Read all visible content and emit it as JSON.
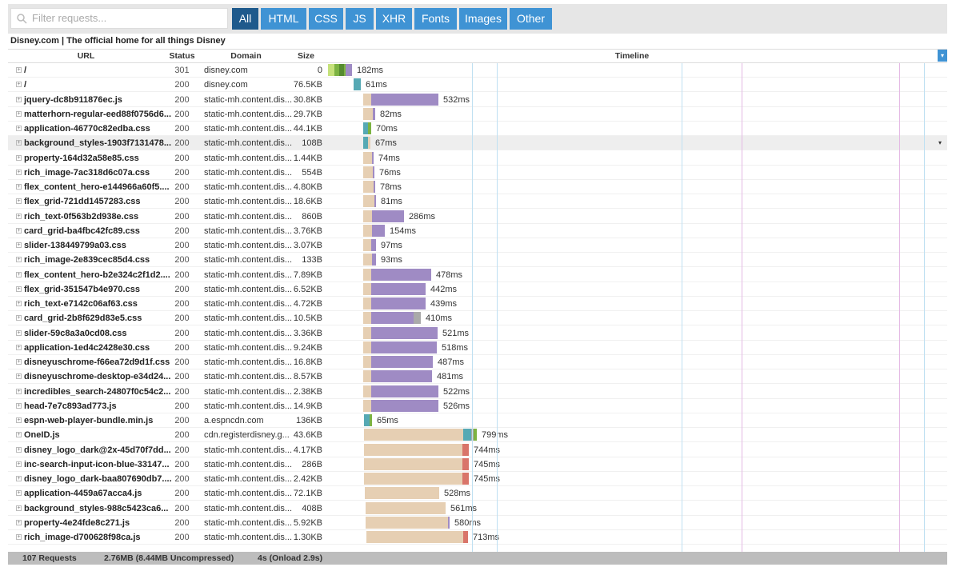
{
  "toolbar": {
    "search_placeholder": "Filter requests...",
    "filters": [
      "All",
      "HTML",
      "CSS",
      "JS",
      "XHR",
      "Fonts",
      "Images",
      "Other"
    ]
  },
  "page_title": "Disney.com | The official home for all things Disney",
  "table": {
    "columns": [
      "URL",
      "Status",
      "Domain",
      "Size",
      "Timeline"
    ],
    "rows": [
      [
        "/",
        "301",
        "disney.com",
        "0",
        "182ms"
      ],
      [
        "/",
        "200",
        "disney.com",
        "76.5KB",
        "61ms"
      ],
      [
        "jquery-dc8b911876ec.js",
        "200",
        "static-mh.content.dis...",
        "30.8KB",
        "532ms"
      ],
      [
        "matterhorn-regular-eed88f0756d6...",
        "200",
        "static-mh.content.dis...",
        "29.7KB",
        "82ms"
      ],
      [
        "application-46770c82edba.css",
        "200",
        "static-mh.content.dis...",
        "44.1KB",
        "70ms"
      ],
      [
        "background_styles-1903f7131478...",
        "200",
        "static-mh.content.dis...",
        "108B",
        "67ms"
      ],
      [
        "property-164d32a58e85.css",
        "200",
        "static-mh.content.dis...",
        "1.44KB",
        "74ms"
      ],
      [
        "rich_image-7ac318d6c07a.css",
        "200",
        "static-mh.content.dis...",
        "554B",
        "76ms"
      ],
      [
        "flex_content_hero-e144966a60f5....",
        "200",
        "static-mh.content.dis...",
        "4.80KB",
        "78ms"
      ],
      [
        "flex_grid-721dd1457283.css",
        "200",
        "static-mh.content.dis...",
        "18.6KB",
        "81ms"
      ],
      [
        "rich_text-0f563b2d938e.css",
        "200",
        "static-mh.content.dis...",
        "860B",
        "286ms"
      ],
      [
        "card_grid-ba4fbc42fc89.css",
        "200",
        "static-mh.content.dis...",
        "3.76KB",
        "154ms"
      ],
      [
        "slider-138449799a03.css",
        "200",
        "static-mh.content.dis...",
        "3.07KB",
        "97ms"
      ],
      [
        "rich_image-2e839cec85d4.css",
        "200",
        "static-mh.content.dis...",
        "133B",
        "93ms"
      ],
      [
        "flex_content_hero-b2e324c2f1d2....",
        "200",
        "static-mh.content.dis...",
        "7.89KB",
        "478ms"
      ],
      [
        "flex_grid-351547b4e970.css",
        "200",
        "static-mh.content.dis...",
        "6.52KB",
        "442ms"
      ],
      [
        "rich_text-e7142c06af63.css",
        "200",
        "static-mh.content.dis...",
        "4.72KB",
        "439ms"
      ],
      [
        "card_grid-2b8f629d83e5.css",
        "200",
        "static-mh.content.dis...",
        "10.5KB",
        "410ms"
      ],
      [
        "slider-59c8a3a0cd08.css",
        "200",
        "static-mh.content.dis...",
        "3.36KB",
        "521ms"
      ],
      [
        "application-1ed4c2428e30.css",
        "200",
        "static-mh.content.dis...",
        "9.24KB",
        "518ms"
      ],
      [
        "disneyuschrome-f66ea72d9d1f.css",
        "200",
        "static-mh.content.dis...",
        "16.8KB",
        "487ms"
      ],
      [
        "disneyuschrome-desktop-e34d24...",
        "200",
        "static-mh.content.dis...",
        "8.57KB",
        "481ms"
      ],
      [
        "incredibles_search-24807f0c54c2...",
        "200",
        "static-mh.content.dis...",
        "2.38KB",
        "522ms"
      ],
      [
        "head-7e7c893ad773.js",
        "200",
        "static-mh.content.dis...",
        "14.9KB",
        "526ms"
      ],
      [
        "espn-web-player-bundle.min.js",
        "200",
        "a.espncdn.com",
        "136KB",
        "65ms"
      ],
      [
        "OneID.js",
        "200",
        "cdn.registerdisney.g...",
        "43.6KB",
        "799ms"
      ],
      [
        "disney_logo_dark@2x-45d70f7dd...",
        "200",
        "static-mh.content.dis...",
        "4.17KB",
        "744ms"
      ],
      [
        "inc-search-input-icon-blue-33147...",
        "200",
        "static-mh.content.dis...",
        "286B",
        "745ms"
      ],
      [
        "disney_logo_dark-baa807690db7....",
        "200",
        "static-mh.content.dis...",
        "2.42KB",
        "745ms"
      ],
      [
        "application-4459a67acca4.js",
        "200",
        "static-mh.content.dis...",
        "72.1KB",
        "528ms"
      ],
      [
        "background_styles-988c5423ca6...",
        "200",
        "static-mh.content.dis...",
        "408B",
        "561ms"
      ],
      [
        "property-4e24fde8c271.js",
        "200",
        "static-mh.content.dis...",
        "5.92KB",
        "580ms"
      ],
      [
        "rich_image-d700628f98ca.js",
        "200",
        "static-mh.content.dis...",
        "1.30KB",
        "713ms"
      ]
    ]
  },
  "footer": [
    "107 Requests",
    "2.76MB (8.44MB Uncompressed)",
    "4s (Onload 2.9s)"
  ]
}
